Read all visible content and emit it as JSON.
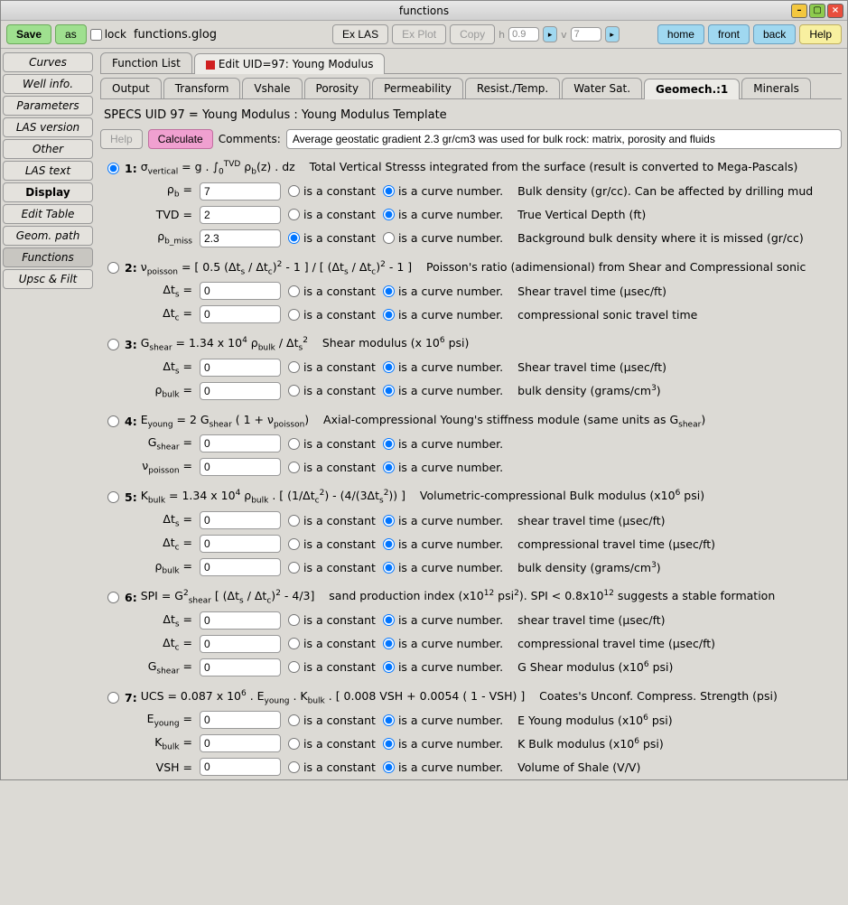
{
  "window": {
    "title": "functions"
  },
  "toolbar": {
    "save": "Save",
    "as": "as",
    "lock": "lock",
    "filename": "functions.glog",
    "exlas": "Ex LAS",
    "explot": "Ex Plot",
    "copy": "Copy",
    "h_lbl": "h",
    "h_val": "0.9",
    "v_lbl": "v",
    "v_val": "7",
    "home": "home",
    "front": "front",
    "back": "back",
    "help": "Help"
  },
  "sidebar": {
    "items": [
      "Curves",
      "Well info.",
      "Parameters",
      "LAS version",
      "Other",
      "LAS text",
      "Display",
      "Edit Table",
      "Geom. path",
      "Functions",
      "Upsc & Filt"
    ],
    "bold_idx": 6,
    "active_idx": 9
  },
  "top_tabs": {
    "items": [
      "Function List",
      "Edit UID=97: Young Modulus"
    ],
    "active_idx": 1
  },
  "sub_tabs": {
    "items": [
      "Output",
      "Transform",
      "Vshale",
      "Porosity",
      "Permeability",
      "Resist./Temp.",
      "Water Sat.",
      "Geomech.:1",
      "Minerals"
    ],
    "active_idx": 7
  },
  "specs": "SPECS UID 97 = Young Modulus : Young Modulus Template",
  "toprow": {
    "help": "Help",
    "calc": "Calculate",
    "comments_lbl": "Comments:",
    "comments_val": "Average geostatic gradient 2.3 gr/cm3 was used for bulk rock: matrix, porosity and fluids"
  },
  "radio": {
    "const": "is a constant",
    "curve": "is a curve number."
  },
  "sections": [
    {
      "num": "1:",
      "selected": true,
      "formula": "σ<sub>vertical</sub> = g . ∫<sub>0</sub><sup>TVD</sup> ρ<sub>b</sub>(z) . dz",
      "desc": "Total Vertical Stresss integrated from the surface (result is converted to Mega-Pascals)",
      "rows": [
        {
          "var": "ρ<sub>b</sub> =",
          "val": "7",
          "const": false,
          "desc": "Bulk density (gr/cc). Can be affected by drilling mud"
        },
        {
          "var": "TVD =",
          "val": "2",
          "const": false,
          "desc": "True Vertical Depth (ft)"
        },
        {
          "var": "ρ<sub>b_miss</sub>",
          "val": "2.3",
          "const": true,
          "desc": "Background bulk density where it is missed (gr/cc)"
        }
      ]
    },
    {
      "num": "2:",
      "selected": false,
      "formula": "ν<sub>poisson</sub> = [ 0.5 (Δt<sub>s</sub> / Δt<sub>c</sub>)<sup>2</sup> - 1 ] / [ (Δt<sub>s</sub> / Δt<sub>c</sub>)<sup>2</sup> - 1 ]",
      "desc": "Poisson's ratio (adimensional) from Shear and Compressional sonic",
      "rows": [
        {
          "var": "Δt<sub>s</sub> =",
          "val": "0",
          "const": false,
          "desc": "Shear travel time (μsec/ft)"
        },
        {
          "var": "Δt<sub>c</sub> =",
          "val": "0",
          "const": false,
          "desc": "compressional sonic travel time"
        }
      ]
    },
    {
      "num": "3:",
      "selected": false,
      "formula": "G<sub>shear</sub> = 1.34 x 10<sup>4</sup> ρ<sub>bulk</sub> / Δt<sub>s</sub><sup>2</sup>",
      "desc": "Shear modulus (x 10<sup>6</sup> psi)",
      "rows": [
        {
          "var": "Δt<sub>s</sub> =",
          "val": "0",
          "const": false,
          "desc": "Shear travel time (μsec/ft)"
        },
        {
          "var": "ρ<sub>bulk</sub> =",
          "val": "0",
          "const": false,
          "desc": "bulk density (grams/cm<sup>3</sup>)"
        }
      ]
    },
    {
      "num": "4:",
      "selected": false,
      "formula": "E<sub>young</sub> = 2 G<sub>shear</sub> ( 1 + ν<sub>poisson</sub>)",
      "desc": "Axial-compressional Young's stiffness module (same units as G<sub>shear</sub>)",
      "rows": [
        {
          "var": "G<sub>shear</sub> =",
          "val": "0",
          "const": false,
          "desc": ""
        },
        {
          "var": "ν<sub>poisson</sub> =",
          "val": "0",
          "const": false,
          "desc": ""
        }
      ]
    },
    {
      "num": "5:",
      "selected": false,
      "formula": "K<sub>bulk</sub> = 1.34 x 10<sup>4</sup> ρ<sub>bulk</sub> . [ (1/Δt<sub>c</sub><sup>2</sup>) - (4/(3Δt<sub>s</sub><sup>2</sup>)) ]",
      "desc": "Volumetric-compressional Bulk modulus (x10<sup>6</sup> psi)",
      "rows": [
        {
          "var": "Δt<sub>s</sub> =",
          "val": "0",
          "const": false,
          "desc": "shear travel time (μsec/ft)"
        },
        {
          "var": "Δt<sub>c</sub> =",
          "val": "0",
          "const": false,
          "desc": "compressional travel time (μsec/ft)"
        },
        {
          "var": "ρ<sub>bulk</sub> =",
          "val": "0",
          "const": false,
          "desc": "bulk density (grams/cm<sup>3</sup>)"
        }
      ]
    },
    {
      "num": "6:",
      "selected": false,
      "formula": "SPI = G<sup>2</sup><sub>shear</sub> [ (Δt<sub>s</sub> / Δt<sub>c</sub>)<sup>2</sup> - 4/3]",
      "desc": "sand production index (x10<sup>12</sup> psi<sup>2</sup>). SPI < 0.8x10<sup>12</sup> suggests a stable formation",
      "rows": [
        {
          "var": "Δt<sub>s</sub> =",
          "val": "0",
          "const": false,
          "desc": "shear travel time (μsec/ft)"
        },
        {
          "var": "Δt<sub>c</sub> =",
          "val": "0",
          "const": false,
          "desc": "compressional travel time (μsec/ft)"
        },
        {
          "var": "G<sub>shear</sub> =",
          "val": "0",
          "const": false,
          "desc": "G Shear modulus (x10<sup>6</sup> psi)"
        }
      ]
    },
    {
      "num": "7:",
      "selected": false,
      "formula": "UCS = 0.087 x 10<sup>6</sup> . E<sub>young</sub> . K<sub>bulk</sub> . [ 0.008 VSH + 0.0054 ( 1 - VSH) ]",
      "desc": "Coates's Unconf. Compress. Strength (psi)",
      "rows": [
        {
          "var": "E<sub>young</sub> =",
          "val": "0",
          "const": false,
          "desc": "E Young modulus (x10<sup>6</sup> psi)"
        },
        {
          "var": "K<sub>bulk</sub> =",
          "val": "0",
          "const": false,
          "desc": "K Bulk modulus (x10<sup>6</sup> psi)"
        },
        {
          "var": "VSH =",
          "val": "0",
          "const": false,
          "desc": "Volume of Shale (V/V)"
        }
      ]
    }
  ]
}
